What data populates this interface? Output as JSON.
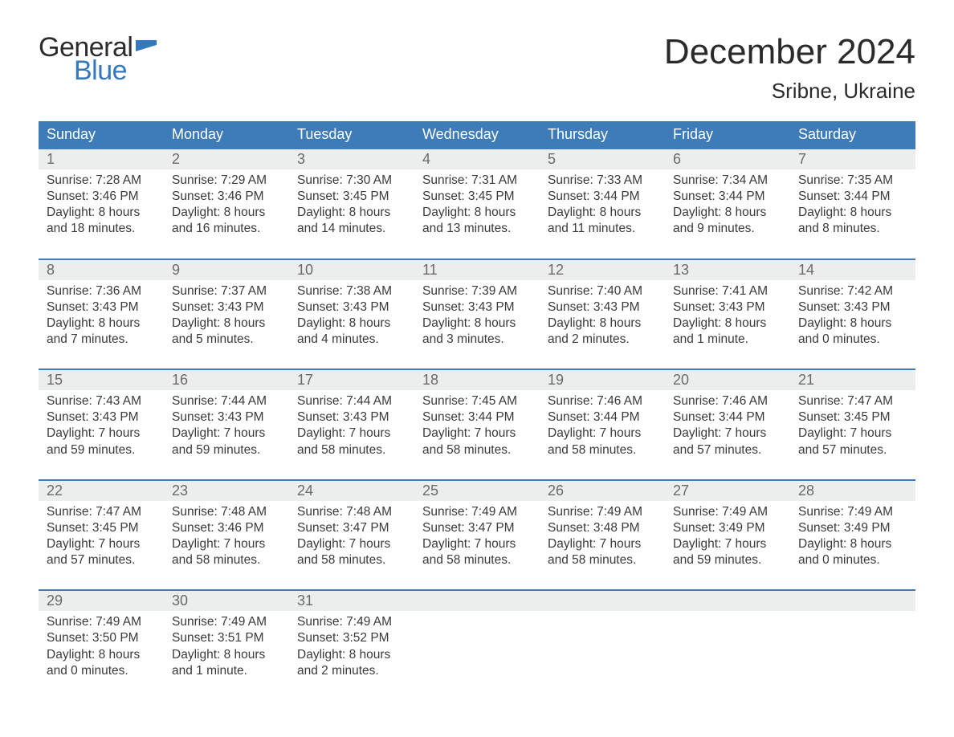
{
  "brand": {
    "word1": "General",
    "word2": "Blue"
  },
  "colors": {
    "brand_blue": "#3478bd",
    "header_blue": "#3d7cb8",
    "daynum_bg": "#eceded",
    "text_dark": "#2a2a2a",
    "text_muted": "#6a6a6a",
    "body_text": "#3a3a3a",
    "background": "#ffffff"
  },
  "title": "December 2024",
  "location": "Sribne, Ukraine",
  "days_of_week": [
    "Sunday",
    "Monday",
    "Tuesday",
    "Wednesday",
    "Thursday",
    "Friday",
    "Saturday"
  ],
  "labels": {
    "sunrise": "Sunrise:",
    "sunset": "Sunset:",
    "daylight": "Daylight:",
    "and": "and"
  },
  "weeks": [
    [
      {
        "n": "1",
        "sr": "7:28 AM",
        "ss": "3:46 PM",
        "dl1": "8 hours",
        "dl2": "18 minutes."
      },
      {
        "n": "2",
        "sr": "7:29 AM",
        "ss": "3:46 PM",
        "dl1": "8 hours",
        "dl2": "16 minutes."
      },
      {
        "n": "3",
        "sr": "7:30 AM",
        "ss": "3:45 PM",
        "dl1": "8 hours",
        "dl2": "14 minutes."
      },
      {
        "n": "4",
        "sr": "7:31 AM",
        "ss": "3:45 PM",
        "dl1": "8 hours",
        "dl2": "13 minutes."
      },
      {
        "n": "5",
        "sr": "7:33 AM",
        "ss": "3:44 PM",
        "dl1": "8 hours",
        "dl2": "11 minutes."
      },
      {
        "n": "6",
        "sr": "7:34 AM",
        "ss": "3:44 PM",
        "dl1": "8 hours",
        "dl2": "9 minutes."
      },
      {
        "n": "7",
        "sr": "7:35 AM",
        "ss": "3:44 PM",
        "dl1": "8 hours",
        "dl2": "8 minutes."
      }
    ],
    [
      {
        "n": "8",
        "sr": "7:36 AM",
        "ss": "3:43 PM",
        "dl1": "8 hours",
        "dl2": "7 minutes."
      },
      {
        "n": "9",
        "sr": "7:37 AM",
        "ss": "3:43 PM",
        "dl1": "8 hours",
        "dl2": "5 minutes."
      },
      {
        "n": "10",
        "sr": "7:38 AM",
        "ss": "3:43 PM",
        "dl1": "8 hours",
        "dl2": "4 minutes."
      },
      {
        "n": "11",
        "sr": "7:39 AM",
        "ss": "3:43 PM",
        "dl1": "8 hours",
        "dl2": "3 minutes."
      },
      {
        "n": "12",
        "sr": "7:40 AM",
        "ss": "3:43 PM",
        "dl1": "8 hours",
        "dl2": "2 minutes."
      },
      {
        "n": "13",
        "sr": "7:41 AM",
        "ss": "3:43 PM",
        "dl1": "8 hours",
        "dl2": "1 minute."
      },
      {
        "n": "14",
        "sr": "7:42 AM",
        "ss": "3:43 PM",
        "dl1": "8 hours",
        "dl2": "0 minutes."
      }
    ],
    [
      {
        "n": "15",
        "sr": "7:43 AM",
        "ss": "3:43 PM",
        "dl1": "7 hours",
        "dl2": "59 minutes."
      },
      {
        "n": "16",
        "sr": "7:44 AM",
        "ss": "3:43 PM",
        "dl1": "7 hours",
        "dl2": "59 minutes."
      },
      {
        "n": "17",
        "sr": "7:44 AM",
        "ss": "3:43 PM",
        "dl1": "7 hours",
        "dl2": "58 minutes."
      },
      {
        "n": "18",
        "sr": "7:45 AM",
        "ss": "3:44 PM",
        "dl1": "7 hours",
        "dl2": "58 minutes."
      },
      {
        "n": "19",
        "sr": "7:46 AM",
        "ss": "3:44 PM",
        "dl1": "7 hours",
        "dl2": "58 minutes."
      },
      {
        "n": "20",
        "sr": "7:46 AM",
        "ss": "3:44 PM",
        "dl1": "7 hours",
        "dl2": "57 minutes."
      },
      {
        "n": "21",
        "sr": "7:47 AM",
        "ss": "3:45 PM",
        "dl1": "7 hours",
        "dl2": "57 minutes."
      }
    ],
    [
      {
        "n": "22",
        "sr": "7:47 AM",
        "ss": "3:45 PM",
        "dl1": "7 hours",
        "dl2": "57 minutes."
      },
      {
        "n": "23",
        "sr": "7:48 AM",
        "ss": "3:46 PM",
        "dl1": "7 hours",
        "dl2": "58 minutes."
      },
      {
        "n": "24",
        "sr": "7:48 AM",
        "ss": "3:47 PM",
        "dl1": "7 hours",
        "dl2": "58 minutes."
      },
      {
        "n": "25",
        "sr": "7:49 AM",
        "ss": "3:47 PM",
        "dl1": "7 hours",
        "dl2": "58 minutes."
      },
      {
        "n": "26",
        "sr": "7:49 AM",
        "ss": "3:48 PM",
        "dl1": "7 hours",
        "dl2": "58 minutes."
      },
      {
        "n": "27",
        "sr": "7:49 AM",
        "ss": "3:49 PM",
        "dl1": "7 hours",
        "dl2": "59 minutes."
      },
      {
        "n": "28",
        "sr": "7:49 AM",
        "ss": "3:49 PM",
        "dl1": "8 hours",
        "dl2": "0 minutes."
      }
    ],
    [
      {
        "n": "29",
        "sr": "7:49 AM",
        "ss": "3:50 PM",
        "dl1": "8 hours",
        "dl2": "0 minutes."
      },
      {
        "n": "30",
        "sr": "7:49 AM",
        "ss": "3:51 PM",
        "dl1": "8 hours",
        "dl2": "1 minute."
      },
      {
        "n": "31",
        "sr": "7:49 AM",
        "ss": "3:52 PM",
        "dl1": "8 hours",
        "dl2": "2 minutes."
      },
      {
        "empty": true
      },
      {
        "empty": true
      },
      {
        "empty": true
      },
      {
        "empty": true
      }
    ]
  ]
}
